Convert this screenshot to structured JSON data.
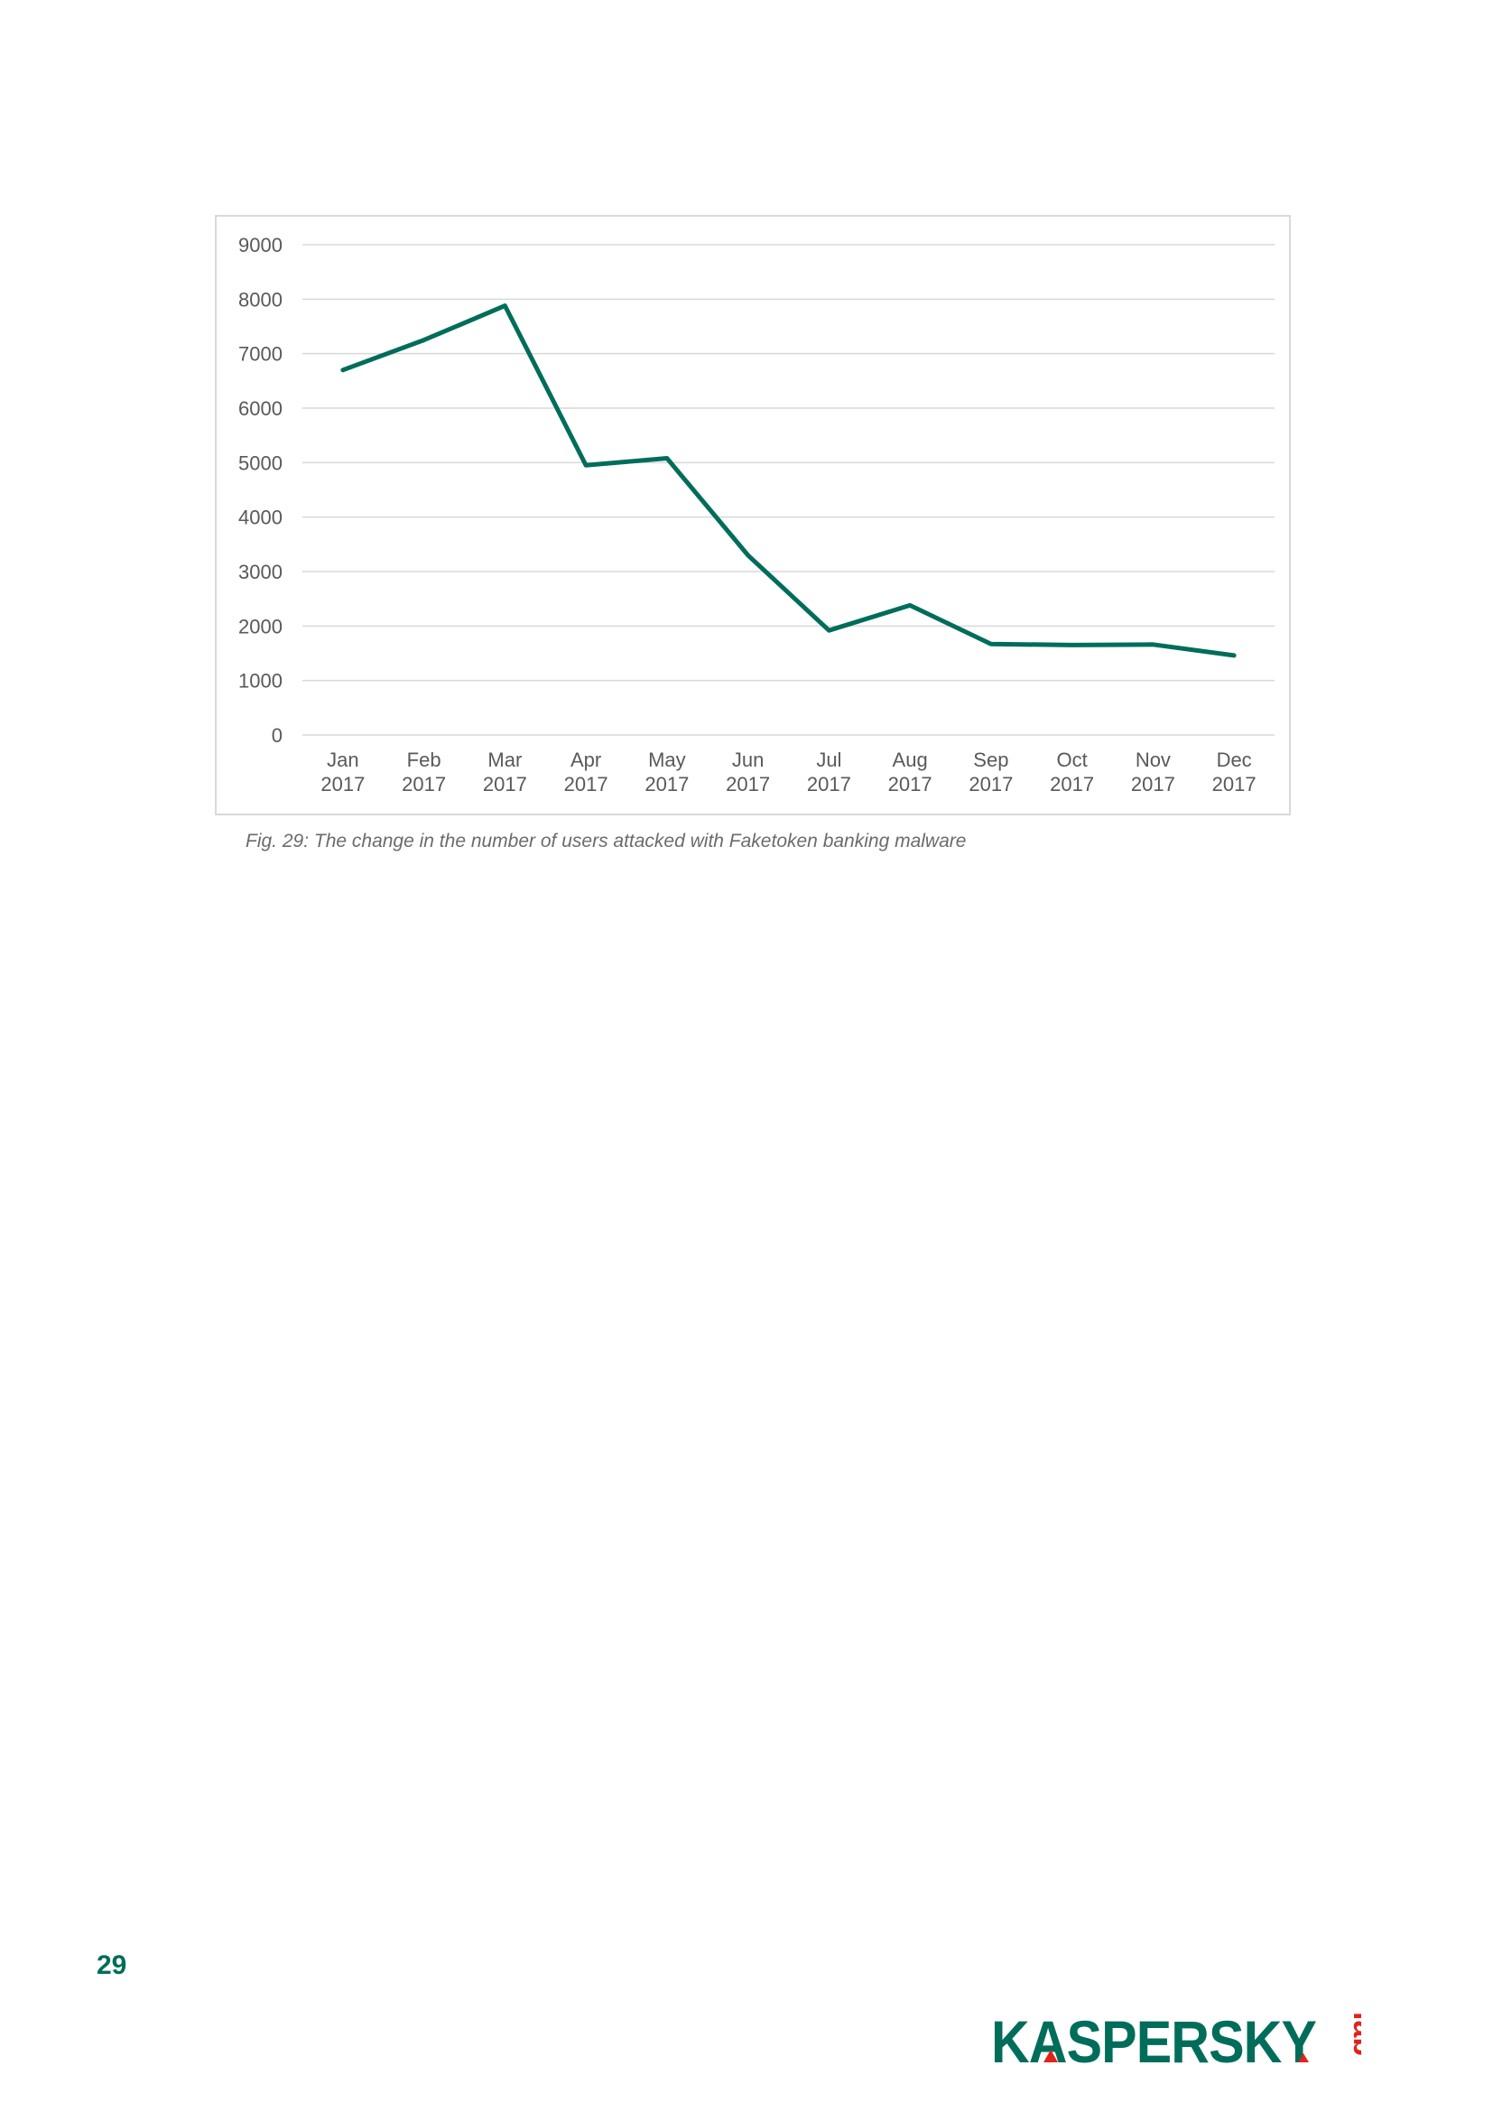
{
  "page": {
    "caption": "Fig. 29: The change in the number of users attacked with Faketoken banking malware",
    "page_number": "29",
    "logo": {
      "name": "kaspersky-lab-logo",
      "text": "KASPERSKY lab",
      "brand_color": "#006d5b",
      "accent_color": "#e2231a"
    }
  },
  "chart_data": {
    "type": "line",
    "title": "",
    "xlabel": "",
    "ylabel": "",
    "categories": [
      [
        "Jan",
        "2017"
      ],
      [
        "Feb",
        "2017"
      ],
      [
        "Mar",
        "2017"
      ],
      [
        "Apr",
        "2017"
      ],
      [
        "May",
        "2017"
      ],
      [
        "Jun",
        "2017"
      ],
      [
        "Jul",
        "2017"
      ],
      [
        "Aug",
        "2017"
      ],
      [
        "Sep",
        "2017"
      ],
      [
        "Oct",
        "2017"
      ],
      [
        "Nov",
        "2017"
      ],
      [
        "Dec",
        "2017"
      ]
    ],
    "series": [
      {
        "values": [
          6700,
          7250,
          7880,
          4950,
          5080,
          3300,
          1920,
          2380,
          1670,
          1650,
          1660,
          1460
        ],
        "color": "#006d5b"
      }
    ],
    "ylim": [
      0,
      9000
    ],
    "yticks": [
      0,
      1000,
      2000,
      3000,
      4000,
      5000,
      6000,
      7000,
      8000,
      9000
    ],
    "grid": true,
    "legend": "none",
    "gridline_color": "#d9d9d9",
    "tick_label_color": "#595959"
  }
}
